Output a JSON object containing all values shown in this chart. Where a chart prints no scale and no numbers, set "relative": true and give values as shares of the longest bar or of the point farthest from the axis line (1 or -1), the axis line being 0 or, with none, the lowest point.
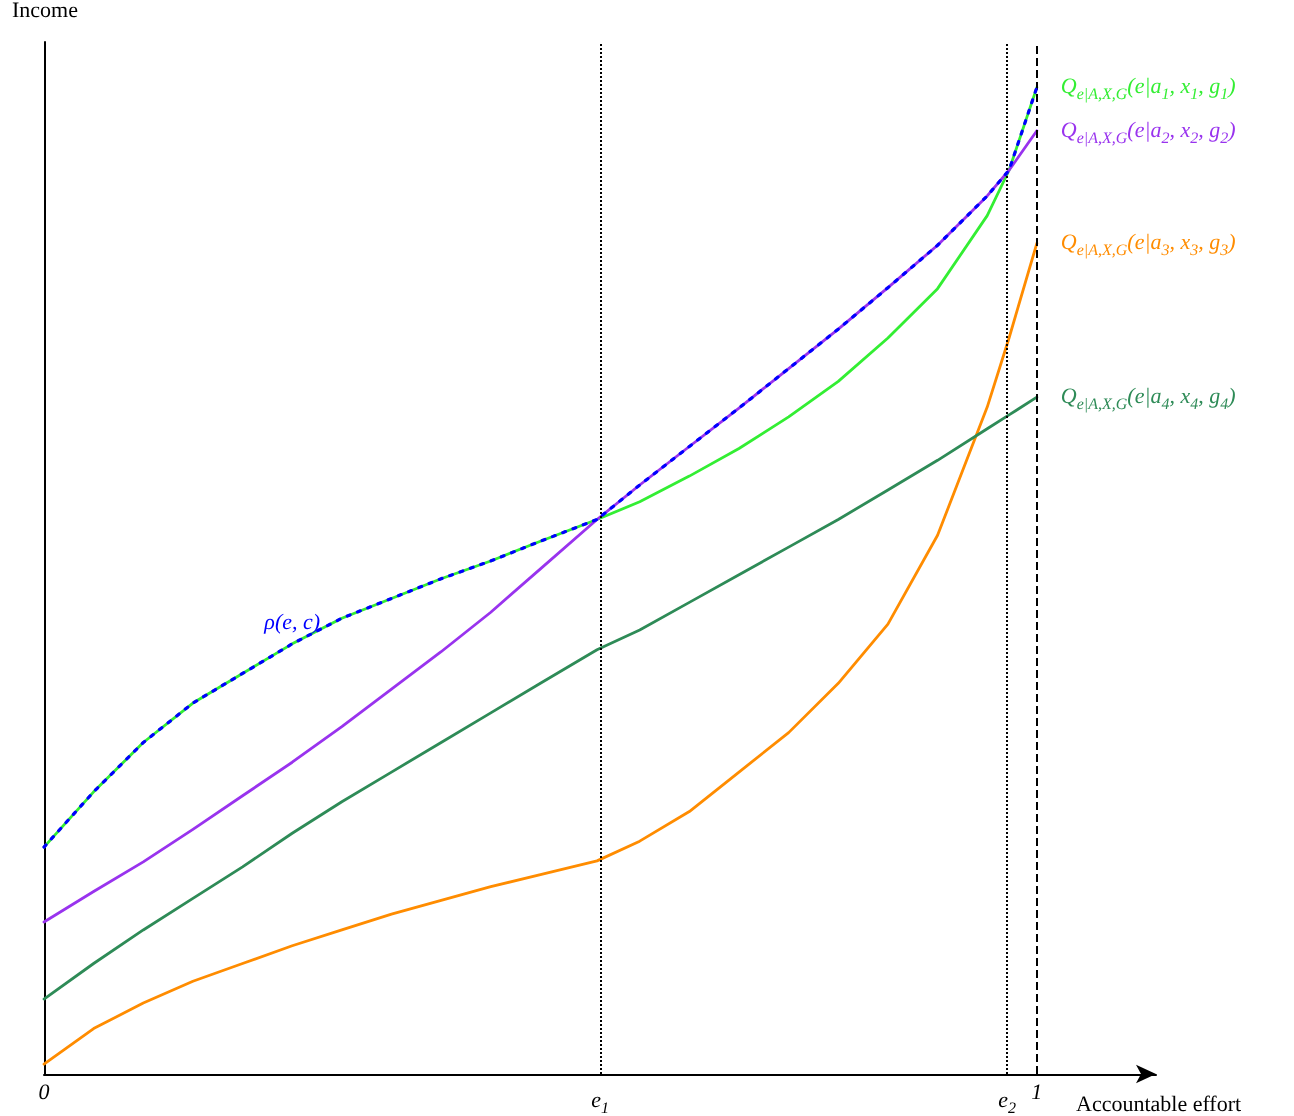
{
  "chart_data": {
    "type": "line",
    "relative": true,
    "xlabel": "Accountable effort",
    "ylabel": "Income",
    "x": [
      0,
      0.05,
      0.1,
      0.15,
      0.2,
      0.25,
      0.3,
      0.35,
      0.4,
      0.45,
      0.5,
      0.557,
      0.6,
      0.65,
      0.7,
      0.75,
      0.8,
      0.85,
      0.9,
      0.95,
      0.972,
      1
    ],
    "xlim": [
      0,
      1.12
    ],
    "xticks": [
      0,
      1
    ],
    "grid": false,
    "legend": false,
    "marker": "none",
    "line_style": "solid",
    "ref_lines": [
      {
        "axis": "x",
        "value": 0.557,
        "label": "e$_{1}$",
        "color": "#000000",
        "line_style": "dotted"
      },
      {
        "axis": "x",
        "value": 0.972,
        "label": "e$_{2}$",
        "color": "#000000",
        "line_style": "dotted"
      },
      {
        "axis": "x",
        "value": 1,
        "color": "#000000",
        "line_style": "dashed"
      }
    ],
    "series": [
      {
        "name": "Q$_{e|A,X,G}$(e|a$_{1}$, x$_{1}$, g$_{1}$)",
        "color": "#33ee33",
        "values": [
          0.23,
          0.286,
          0.336,
          0.376,
          0.406,
          0.436,
          0.462,
          0.482,
          0.502,
          0.52,
          0.54,
          0.562,
          0.58,
          0.606,
          0.634,
          0.666,
          0.702,
          0.746,
          0.796,
          0.87,
          0.916,
          1
        ]
      },
      {
        "name": "Q$_{e|A,X,G}$(e|a$_{2}$, x$_{2}$, g$_{2}$)",
        "color": "#9933ee",
        "values": [
          0.154,
          0.185,
          0.215,
          0.248,
          0.282,
          0.316,
          0.352,
          0.39,
          0.428,
          0.468,
          0.512,
          0.562,
          0.597,
          0.636,
          0.675,
          0.715,
          0.755,
          0.797,
          0.84,
          0.89,
          0.916,
          0.956
        ]
      },
      {
        "name": "Q$_{e|A,X,G}$(e|a$_{3}$, x$_{3}$, g$_{3}$)",
        "color": "#ff8c00",
        "values": [
          0.01,
          0.046,
          0.072,
          0.094,
          0.112,
          0.13,
          0.146,
          0.162,
          0.176,
          0.19,
          0.202,
          0.216,
          0.236,
          0.266,
          0.306,
          0.346,
          0.396,
          0.456,
          0.546,
          0.676,
          0.746,
          0.842
        ]
      },
      {
        "name": "Q$_{e|A,X,G}$(e|a$_{4}$, x$_{4}$, g$_{4}$)",
        "color": "#2e8b57",
        "values": [
          0.076,
          0.112,
          0.146,
          0.178,
          0.21,
          0.244,
          0.276,
          0.306,
          0.336,
          0.366,
          0.396,
          0.43,
          0.45,
          0.478,
          0.506,
          0.534,
          0.562,
          0.592,
          0.622,
          0.654,
          0.668,
          0.686
        ]
      },
      {
        "name": "ρ(e, c)",
        "color": "#0000ff",
        "line_style": "dotted",
        "values": [
          0.23,
          0.286,
          0.336,
          0.376,
          0.406,
          0.436,
          0.462,
          0.482,
          0.502,
          0.52,
          0.54,
          0.562,
          0.597,
          0.636,
          0.675,
          0.715,
          0.755,
          0.797,
          0.84,
          0.89,
          0.916,
          1
        ]
      }
    ]
  }
}
